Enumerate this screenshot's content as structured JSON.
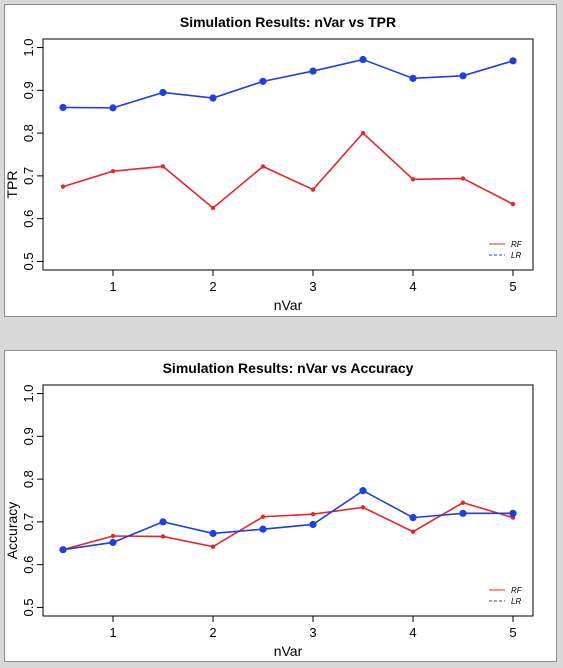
{
  "chart_data": [
    {
      "type": "line",
      "title": "Simulation Results: nVar vs TPR",
      "xlabel": "nVar",
      "ylabel": "TPR",
      "x": [
        0.5,
        1.0,
        1.5,
        2.0,
        2.5,
        3.0,
        3.5,
        4.0,
        4.5,
        5.0
      ],
      "xticks": [
        "1",
        "2",
        "3",
        "4",
        "5"
      ],
      "yticks": [
        "0.5",
        "0.6",
        "0.7",
        "0.8",
        "0.9",
        "1.0"
      ],
      "ylim": [
        0.5,
        1.0
      ],
      "legend_position": "bottom-right",
      "series": [
        {
          "name": "RF",
          "color": "#e8262a",
          "marker": "small",
          "values": [
            0.675,
            0.711,
            0.722,
            0.625,
            0.722,
            0.668,
            0.8,
            0.692,
            0.694,
            0.634
          ]
        },
        {
          "name": "LR",
          "color": "#1f3fe0",
          "marker": "large",
          "values": [
            0.86,
            0.859,
            0.895,
            0.882,
            0.921,
            0.945,
            0.972,
            0.928,
            0.934,
            0.969
          ]
        }
      ]
    },
    {
      "type": "line",
      "title": "Simulation Results: nVar vs Accuracy",
      "xlabel": "nVar",
      "ylabel": "Accuracy",
      "x": [
        0.5,
        1.0,
        1.5,
        2.0,
        2.5,
        3.0,
        3.5,
        4.0,
        4.5,
        5.0
      ],
      "xticks": [
        "1",
        "2",
        "3",
        "4",
        "5"
      ],
      "yticks": [
        "0.5",
        "0.6",
        "0.7",
        "0.8",
        "0.9",
        "1.0"
      ],
      "ylim": [
        0.5,
        1.0
      ],
      "legend_position": "bottom-right",
      "series": [
        {
          "name": "RF",
          "color": "#e8262a",
          "marker": "small",
          "values": [
            0.635,
            0.667,
            0.666,
            0.642,
            0.712,
            0.718,
            0.734,
            0.677,
            0.745,
            0.71
          ]
        },
        {
          "name": "LR",
          "color": "#1f3fe0",
          "marker": "large",
          "values": [
            0.635,
            0.652,
            0.7,
            0.673,
            0.683,
            0.694,
            0.773,
            0.71,
            0.72,
            0.72
          ]
        }
      ]
    }
  ]
}
